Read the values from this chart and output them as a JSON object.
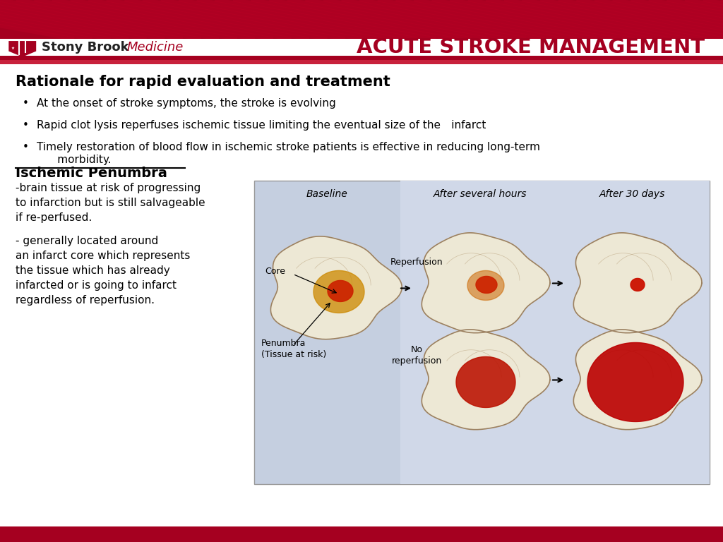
{
  "title": "ACUTE STROKE MANAGEMENT",
  "header_bg_color": "#a50020",
  "logo_text_stony": "Stony Brook",
  "logo_text_medicine": "Medicine",
  "section_title": "Rationale for rapid evaluation and treatment",
  "bullet_points": [
    "At the onset of stroke symptoms, the stroke is evolving",
    "Rapid clot lysis reperfuses ischemic tissue limiting the eventual size of the infarct",
    "Timely restoration of blood flow in ischemic stroke patients is effective in reducing long-term\n      morbidity."
  ],
  "penumbra_title": "Ischemic Penumbra",
  "penumbra_text1": "-brain tissue at risk of progressing\nto infarction but is still salvageable\nif re-perfused.",
  "penumbra_text2": "- generally located around\nan infarct core which represents\nthe tissue which has already\ninfarcted or is going to infarct\nregardless of reperfusion.",
  "bg_color": "#ffffff",
  "text_color": "#000000",
  "image_box_color": "#c5cfe0",
  "col_labels": [
    "Baseline",
    "After several hours",
    "After 30 days"
  ],
  "bottom_bar_color": "#a50020"
}
